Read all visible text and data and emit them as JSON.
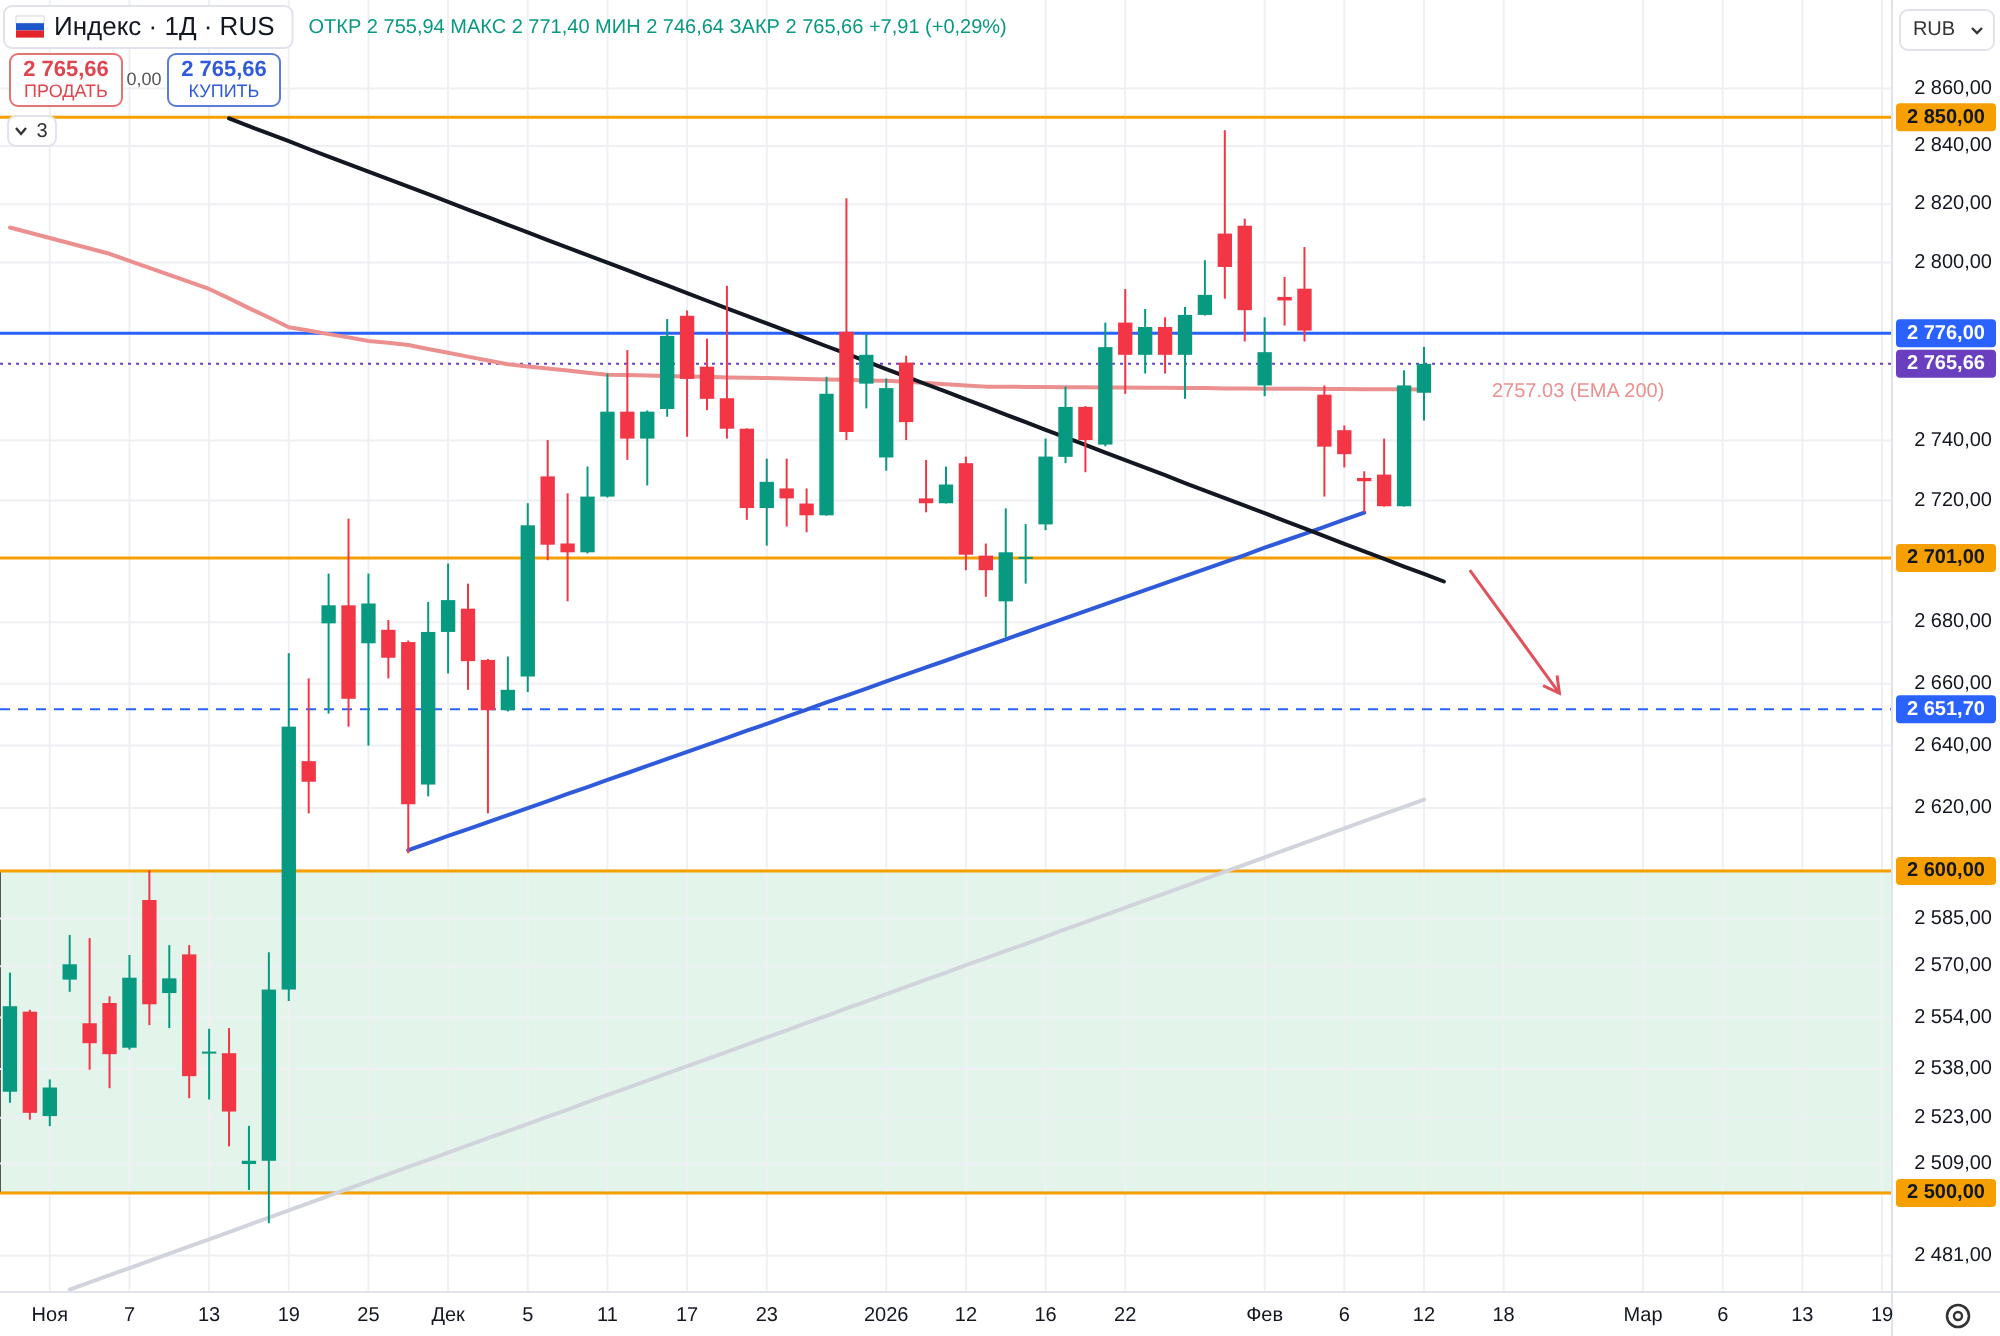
{
  "chart_data": {
    "type": "candlestick",
    "title": "Индекс · 1Д · RUS",
    "subtitle": "ОТКР 2 755,94 МАКС 2 771,40 МИН 2 746,64 ЗАКР 2 765,66 +7,91 (+0,29%)",
    "categories": [
      null,
      null,
      "Ноя",
      null,
      null,
      null,
      "7",
      null,
      null,
      null,
      "13",
      null,
      null,
      null,
      "19",
      null,
      null,
      null,
      "25",
      null,
      null,
      null,
      "Дек",
      null,
      null,
      null,
      "5",
      null,
      null,
      null,
      "11",
      null,
      null,
      null,
      "17",
      null,
      null,
      null,
      "23",
      null,
      null,
      null,
      null,
      null,
      "2026",
      null,
      null,
      null,
      "12",
      null,
      null,
      null,
      "16",
      null,
      null,
      null,
      "22",
      null,
      null,
      null,
      null,
      null,
      null,
      "Фев",
      null,
      null,
      null,
      "6",
      null,
      null,
      null,
      "12",
      null,
      null,
      null,
      "18",
      null,
      null,
      null,
      null,
      null,
      null,
      "Мар",
      null,
      null,
      null,
      "6",
      null,
      null,
      null,
      "13",
      null,
      null,
      null,
      "19"
    ],
    "ohlc": [
      [
        2531,
        2568,
        2527.6,
        2557.5
      ],
      [
        2555.8,
        2556.4,
        2522.4,
        2524.5
      ],
      [
        2523.5,
        2534.8,
        2520.4,
        2532.3
      ],
      [
        2565.8,
        2579.8,
        2562,
        2570.6
      ],
      [
        2552.2,
        2578.8,
        2537.8,
        2546
      ],
      [
        2558.5,
        2560.6,
        2532.1,
        2542.6
      ],
      [
        2544.6,
        2573.5,
        2544,
        2566.4
      ],
      [
        2590.8,
        2600.2,
        2551.6,
        2558.1
      ],
      [
        2561.6,
        2576.6,
        2550.7,
        2566.2
      ],
      [
        2573.7,
        2576.6,
        2529,
        2535.8
      ],
      [
        2542.9,
        2550.5,
        2528.6,
        2543.4
      ],
      [
        2542.9,
        2550.7,
        2514.2,
        2524.9
      ],
      [
        2508.8,
        2520.5,
        2500.9,
        2509.8
      ],
      [
        2509.8,
        2574.4,
        2490.8,
        2562.7
      ],
      [
        2562.7,
        2669.9,
        2559.1,
        2646.1
      ],
      [
        2635,
        2661.7,
        2618.3,
        2628.4
      ],
      [
        2679.6,
        2695.9,
        2650.3,
        2685.5
      ],
      [
        2685.5,
        2714,
        2646.1,
        2655.1
      ],
      [
        2673.1,
        2695.9,
        2640,
        2686.1
      ],
      [
        2677.5,
        2680.7,
        2661.7,
        2668.4
      ],
      [
        2673.5,
        2674,
        2605.6,
        2621.2
      ],
      [
        2627.5,
        2686.6,
        2623.7,
        2676.8
      ],
      [
        2676.8,
        2699.2,
        2663.3,
        2687.2
      ],
      [
        2684.4,
        2692.6,
        2658,
        2667.3
      ],
      [
        2667.7,
        2668,
        2618.3,
        2651.4
      ],
      [
        2651.4,
        2668.8,
        2651,
        2658
      ],
      [
        2662.3,
        2719.1,
        2657.3,
        2711.8
      ],
      [
        2728,
        2740.1,
        2700.3,
        2705.4
      ],
      [
        2705.8,
        2722.4,
        2686.8,
        2702.9
      ],
      [
        2702.9,
        2731.3,
        2702.5,
        2721.3
      ],
      [
        2721.3,
        2762.4,
        2721,
        2749.6
      ],
      [
        2749.6,
        2770.3,
        2733.5,
        2740.6
      ],
      [
        2740.6,
        2750,
        2725,
        2749.6
      ],
      [
        2750.5,
        2780.8,
        2747.9,
        2775.1
      ],
      [
        2781.9,
        2783.7,
        2741.2,
        2760.6
      ],
      [
        2764.7,
        2774.2,
        2750.1,
        2753.9
      ],
      [
        2754.1,
        2792.1,
        2740.6,
        2743.9
      ],
      [
        2743.9,
        2744,
        2713.6,
        2717.5
      ],
      [
        2717.5,
        2733.9,
        2705.1,
        2726.2
      ],
      [
        2724,
        2733.9,
        2711.4,
        2720.7
      ],
      [
        2719,
        2724,
        2709.5,
        2715.1
      ],
      [
        2715.1,
        2761.3,
        2715,
        2755.6
      ],
      [
        2776.5,
        2822,
        2740.1,
        2742.8
      ],
      [
        2759,
        2775.8,
        2750.7,
        2768.7
      ],
      [
        2734.3,
        2760.7,
        2729.9,
        2757.5
      ],
      [
        2766.1,
        2768.4,
        2740.1,
        2746.1
      ],
      [
        2720.7,
        2733.5,
        2716.1,
        2719.1
      ],
      [
        2719.1,
        2731.3,
        2719,
        2725.3
      ],
      [
        2732.4,
        2734.6,
        2697,
        2702.1
      ],
      [
        2701.8,
        2705.8,
        2688.3,
        2697
      ],
      [
        2686.8,
        2717.4,
        2675,
        2702.9
      ],
      [
        2700.7,
        2712.2,
        2692.6,
        2701.4
      ],
      [
        2712.1,
        2740.6,
        2710.2,
        2734.6
      ],
      [
        2734.5,
        2758,
        2732.4,
        2751.2
      ],
      [
        2751.2,
        2751.5,
        2729.4,
        2740.1
      ],
      [
        2738.6,
        2779.6,
        2738,
        2771.3
      ],
      [
        2779.6,
        2791,
        2755.6,
        2768.7
      ],
      [
        2768.7,
        2784.2,
        2762.4,
        2778.1
      ],
      [
        2778.1,
        2781.4,
        2762.4,
        2768.7
      ],
      [
        2768.7,
        2784.9,
        2753.9,
        2782.2
      ],
      [
        2782.2,
        2800.8,
        2782,
        2789
      ],
      [
        2809.9,
        2845.5,
        2787.7,
        2798.5
      ],
      [
        2812.6,
        2815,
        2773.2,
        2783.8
      ],
      [
        2758.4,
        2781.4,
        2754.8,
        2769.6
      ],
      [
        2788.3,
        2795.1,
        2778.6,
        2787.1
      ],
      [
        2791.1,
        2805.3,
        2773.2,
        2776.9
      ],
      [
        2755.3,
        2758.4,
        2721.3,
        2737.9
      ],
      [
        2743.4,
        2745,
        2731,
        2735.4
      ],
      [
        2727.5,
        2729.7,
        2716.1,
        2726.4
      ],
      [
        2728.6,
        2740.6,
        2718,
        2718.1
      ],
      [
        2718.1,
        2763.5,
        2718,
        2758.4
      ],
      [
        2755.94,
        2771.4,
        2746.64,
        2765.66
      ],
      null,
      null,
      null,
      null,
      null,
      null,
      null,
      null,
      null,
      null,
      null,
      null,
      null,
      null,
      null,
      null,
      null,
      null,
      null,
      null,
      null,
      null,
      null
    ],
    "colors": [
      "#089981",
      "#f23645",
      "#089981",
      "#089981",
      "#f23645",
      "#f23645",
      "#089981",
      "#f23645",
      "#089981",
      "#f23645",
      "#089981",
      "#f23645",
      "#089981",
      "#089981",
      "#089981",
      "#f23645",
      "#089981",
      "#f23645",
      "#089981",
      "#f23645",
      "#f23645",
      "#089981",
      "#089981",
      "#f23645",
      "#f23645",
      "#089981",
      "#089981",
      "#f23645",
      "#f23645",
      "#089981",
      "#089981",
      "#f23645",
      "#089981",
      "#089981",
      "#f23645",
      "#f23645",
      "#f23645",
      "#f23645",
      "#089981",
      "#f23645",
      "#f23645",
      "#089981",
      "#f23645",
      "#089981",
      "#089981",
      "#f23645",
      "#f23645",
      "#089981",
      "#f23645",
      "#f23645",
      "#089981",
      "#089981",
      "#089981",
      "#089981",
      "#f23645",
      "#089981",
      "#f23645",
      "#089981",
      "#f23645",
      "#089981",
      "#089981",
      "#f23645",
      "#f23645",
      "#089981",
      "#f23645",
      "#f23645",
      "#f23645",
      "#f23645",
      "#f23645",
      "#f23645",
      "#089981",
      "#089981",
      null,
      null,
      null,
      null,
      null,
      null,
      null,
      null,
      null,
      null,
      null,
      null,
      null,
      null,
      null,
      null,
      null,
      null,
      null,
      null,
      null,
      null,
      null
    ],
    "series": [
      {
        "type": "line",
        "color": "#ec8f8f",
        "values": [
          2812,
          2810.2,
          2808.4,
          2806.6,
          2804.8,
          2803,
          2800.6,
          2798.2,
          2795.8,
          2793.4,
          2791,
          2787.8,
          2784.5,
          2781.3,
          2778,
          2776.9,
          2775.7,
          2774.6,
          2773.4,
          2772.8,
          2772,
          2770.7,
          2769.4,
          2768.1,
          2766.8,
          2765.5,
          2764.8,
          2764.1,
          2763.4,
          2762.7,
          2762,
          2761.9,
          2761.7,
          2761.6,
          2761.4,
          2761.3,
          2761.1,
          2761,
          2760.9,
          2760.7,
          2760.6,
          2760.4,
          2760.3,
          2760.1,
          2760,
          2759.6,
          2759.2,
          2758.8,
          2758.4,
          2758,
          2758,
          2757.9,
          2757.9,
          2757.8,
          2757.8,
          2757.7,
          2757.7,
          2757.6,
          2757.6,
          2757.5,
          2757.5,
          2757.4,
          2757.4,
          2757.3,
          2757.3,
          2757.3,
          2757.2,
          2757.2,
          2757.1,
          2757.1,
          2757.1,
          2757.03,
          null,
          null,
          null,
          null,
          null,
          null,
          null,
          null,
          null,
          null,
          null,
          null,
          null,
          null,
          null,
          null,
          null,
          null,
          null,
          null,
          null,
          null,
          null
        ]
      },
      {
        "type": "line",
        "color": "#d1d4dc",
        "values": [
          null,
          null,
          null,
          2470.7,
          2472.9,
          2475.1,
          2477.2,
          2479.4,
          2481.6,
          2483.8,
          2485.9,
          2488.1,
          2490.3,
          2492.5,
          2494.7,
          2496.9,
          2499.1,
          2501.3,
          2503.5,
          2505.7,
          2507.9,
          2510.1,
          2512.3,
          2514.5,
          2516.7,
          2518.9,
          2521.1,
          2523.3,
          2525.5,
          2527.8,
          2530,
          2532.2,
          2534.4,
          2536.7,
          2538.9,
          2541.1,
          2543.3,
          2545.6,
          2547.8,
          2550,
          2552.3,
          2554.5,
          2556.8,
          2559,
          2561.3,
          2563.5,
          2565.8,
          2568,
          2570.3,
          2572.5,
          2574.8,
          2577,
          2579.3,
          2581.6,
          2583.8,
          2586.1,
          2588.4,
          2590.7,
          2592.9,
          2595.2,
          2597.5,
          2599.8,
          2602,
          2604.3,
          2606.6,
          2608.9,
          2611.2,
          2613.5,
          2615.8,
          2618.1,
          2620.4,
          2622.7,
          null,
          null,
          null,
          null,
          null,
          null,
          null,
          null,
          null,
          null,
          null,
          null,
          null,
          null,
          null,
          null,
          null,
          null,
          null,
          null,
          null,
          null,
          null
        ]
      },
      {
        "type": "line",
        "color": "#2f5bdb",
        "values": [
          null,
          null,
          null,
          null,
          null,
          null,
          null,
          null,
          null,
          null,
          null,
          null,
          null,
          null,
          null,
          null,
          null,
          null,
          null,
          null,
          2606.6,
          2608.8,
          2611.1,
          2613.3,
          2615.5,
          2617.7,
          2620,
          2622.2,
          2624.5,
          2626.7,
          2629,
          2631.2,
          2633.5,
          2635.7,
          2638,
          2640.2,
          2642.5,
          2644.8,
          2647,
          2649.3,
          2651.6,
          2653.9,
          2656.1,
          2658.4,
          2660.7,
          2663,
          2665.3,
          2667.5,
          2669.8,
          2672.1,
          2674.4,
          2676.7,
          2679,
          2681.3,
          2683.6,
          2685.9,
          2688.2,
          2690.5,
          2692.8,
          2695.1,
          2697.4,
          2699.7,
          2702,
          2704.4,
          2706.7,
          2709,
          2711.3,
          2713.7,
          2716,
          null,
          null,
          null,
          null,
          null,
          null,
          null,
          null,
          null,
          null,
          null,
          null,
          null,
          null,
          null,
          null,
          null,
          null,
          null,
          null,
          null,
          null,
          null,
          null,
          null,
          null
        ]
      },
      {
        "type": "line",
        "color": "#131722",
        "values": [
          null,
          null,
          null,
          null,
          null,
          null,
          null,
          null,
          null,
          null,
          null,
          2849.6,
          2846.9,
          2844.3,
          2841.7,
          2839,
          2836.4,
          2833.8,
          2831.2,
          2828.6,
          2826,
          2823.4,
          2820.8,
          2818.1,
          2815.5,
          2812.9,
          2810.3,
          2807.7,
          2805.1,
          2802.5,
          2800,
          2797.4,
          2794.8,
          2792.2,
          2789.6,
          2787,
          2784.4,
          2781.9,
          2779.3,
          2776.8,
          2774.2,
          2771.6,
          2769.1,
          2766.5,
          2763.9,
          2761.4,
          2758.8,
          2756.3,
          2753.7,
          2751.2,
          2748.6,
          2746.1,
          2743.5,
          2741,
          2738.5,
          2735.9,
          2733.4,
          2730.9,
          2728.4,
          2725.8,
          2723.3,
          2720.8,
          2718.3,
          2715.8,
          2713.3,
          2710.8,
          2708.2,
          2705.7,
          2703.2,
          2700.7,
          2698.2,
          2695.8,
          2693.3,
          null,
          null,
          null,
          null,
          null,
          null,
          null,
          null,
          null,
          null,
          null,
          null,
          null,
          null,
          null,
          null,
          null,
          null,
          null,
          null,
          null,
          null
        ]
      }
    ],
    "ylim": [
      2470,
      2891
    ],
    "log": "y",
    "grid": true,
    "yticks": [
      {
        "value": 2860,
        "label": "2 860,00"
      },
      {
        "value": 2840,
        "label": "2 840,00"
      },
      {
        "value": 2820,
        "label": "2 820,00"
      },
      {
        "value": 2800,
        "label": "2 800,00"
      },
      {
        "value": 2740,
        "label": "2 740,00"
      },
      {
        "value": 2720,
        "label": "2 720,00"
      },
      {
        "value": 2680,
        "label": "2 680,00"
      },
      {
        "value": 2660,
        "label": "2 660,00"
      },
      {
        "value": 2640,
        "label": "2 640,00"
      },
      {
        "value": 2620,
        "label": "2 620,00"
      },
      {
        "value": 2585,
        "label": "2 585,00"
      },
      {
        "value": 2570,
        "label": "2 570,00"
      },
      {
        "value": 2554,
        "label": "2 554,00"
      },
      {
        "value": 2538,
        "label": "2 538,00"
      },
      {
        "value": 2523,
        "label": "2 523,00"
      },
      {
        "value": 2509,
        "label": "2 509,00"
      },
      {
        "value": 2481,
        "label": "2 481,00"
      }
    ],
    "ref_lines": [
      {
        "axis": "y",
        "value": 2850,
        "label": "2 850,00",
        "color": "#f59f00",
        "line_style": "solid"
      },
      {
        "axis": "y",
        "value": 2776,
        "label": "2 776,00",
        "color": "#2962ff",
        "line_style": "solid"
      },
      {
        "axis": "y",
        "value": 2765.66,
        "label": "2 765,66",
        "color": "#6a3fbf",
        "line_style": "dotted"
      },
      {
        "axis": "y",
        "value": 2701,
        "label": "2 701,00",
        "color": "#f59f00",
        "line_style": "solid"
      },
      {
        "axis": "y",
        "value": 2651.7,
        "label": "2 651,70",
        "color": "#2962ff",
        "line_style": "dashed"
      },
      {
        "axis": "y",
        "value": 2600,
        "label": "2 600,00",
        "color": "#f59f00",
        "line_style": "solid"
      },
      {
        "axis": "y",
        "value": 2500,
        "label": "2 500,00",
        "color": "#f59f00",
        "line_style": "solid"
      }
    ],
    "bands": [
      {
        "axis": "y",
        "from": 2500,
        "to": 2600,
        "color": "#e3f4ea"
      }
    ],
    "annotations": [
      "2 765,66",
      "ПРОДАТЬ",
      "0,00",
      "2 765,66",
      "КУПИТЬ",
      "3",
      "RUB",
      "2757.03 (EMA 200)"
    ]
  }
}
